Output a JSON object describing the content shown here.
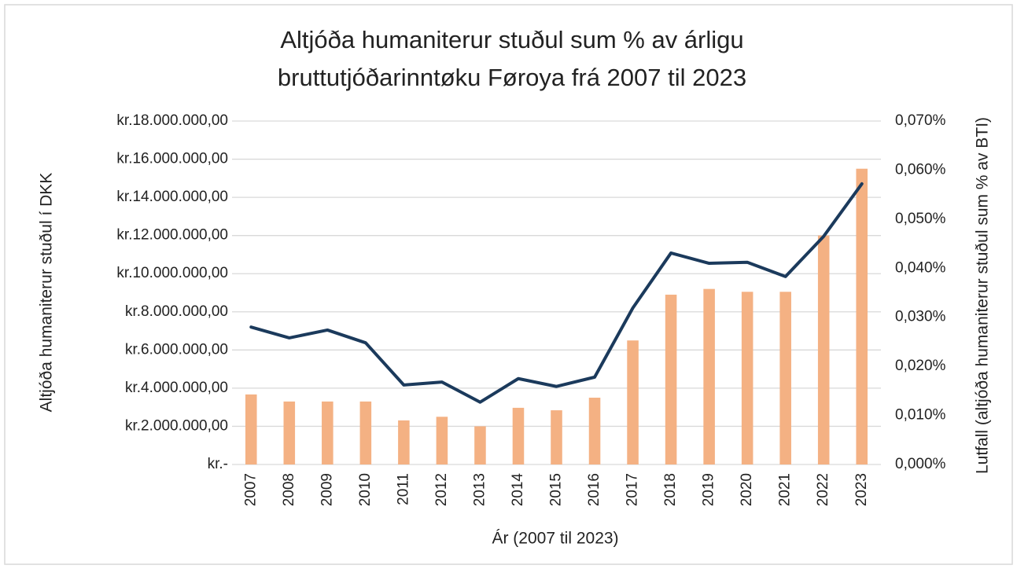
{
  "chart_data": {
    "type": "bar",
    "title": [
      "Altjóða humaniterur stuðul sum % av árligu",
      "bruttutjóðarinntøku Føroya frá 2007 til 2023"
    ],
    "xlabel": "Ár (2007 til 2023)",
    "ylabel": "Altjóða humaniterur stuðul í DKK",
    "y2label": "Lutfall (altjóða humaniterur stuðul sum % av BTI)",
    "categories": [
      "2007",
      "2008",
      "2009",
      "2010",
      "2011",
      "2012",
      "2013",
      "2014",
      "2015",
      "2016",
      "2017",
      "2018",
      "2019",
      "2020",
      "2021",
      "2022",
      "2023"
    ],
    "series": [
      {
        "type": "bar",
        "color": "#f4b183",
        "values": [
          3670000,
          3300000,
          3300000,
          3300000,
          2310000,
          2500000,
          2000000,
          2970000,
          2840000,
          3500000,
          6500000,
          8900000,
          9200000,
          9050000,
          9050000,
          12000000,
          15500000
        ]
      },
      {
        "type": "line",
        "axis": "y2",
        "color": "#1b3a5c",
        "values": [
          0.028,
          0.0258,
          0.0274,
          0.0248,
          0.0162,
          0.0168,
          0.0127,
          0.0175,
          0.0159,
          0.0178,
          0.0319,
          0.0431,
          0.041,
          0.0412,
          0.0383,
          0.0465,
          0.0572
        ]
      }
    ],
    "ylim": [
      0,
      18000000
    ],
    "yticks": [
      {
        "value": 0,
        "label": "kr.-"
      },
      {
        "value": 2000000,
        "label": "kr.2.000.000,00"
      },
      {
        "value": 4000000,
        "label": "kr.4.000.000,00"
      },
      {
        "value": 6000000,
        "label": "kr.6.000.000,00"
      },
      {
        "value": 8000000,
        "label": "kr.8.000.000,00"
      },
      {
        "value": 10000000,
        "label": "kr.10.000.000,00"
      },
      {
        "value": 12000000,
        "label": "kr.12.000.000,00"
      },
      {
        "value": 14000000,
        "label": "kr.14.000.000,00"
      },
      {
        "value": 16000000,
        "label": "kr.16.000.000,00"
      },
      {
        "value": 18000000,
        "label": "kr.18.000.000,00"
      }
    ],
    "y2lim": [
      0,
      0.07
    ],
    "y2ticks": [
      {
        "value": 0,
        "label": "0,000%"
      },
      {
        "value": 0.01,
        "label": "0,010%"
      },
      {
        "value": 0.02,
        "label": "0,020%"
      },
      {
        "value": 0.03,
        "label": "0,030%"
      },
      {
        "value": 0.04,
        "label": "0,040%"
      },
      {
        "value": 0.05,
        "label": "0,050%"
      },
      {
        "value": 0.06,
        "label": "0,060%"
      },
      {
        "value": 0.07,
        "label": "0,070%"
      }
    ],
    "grid": true
  }
}
